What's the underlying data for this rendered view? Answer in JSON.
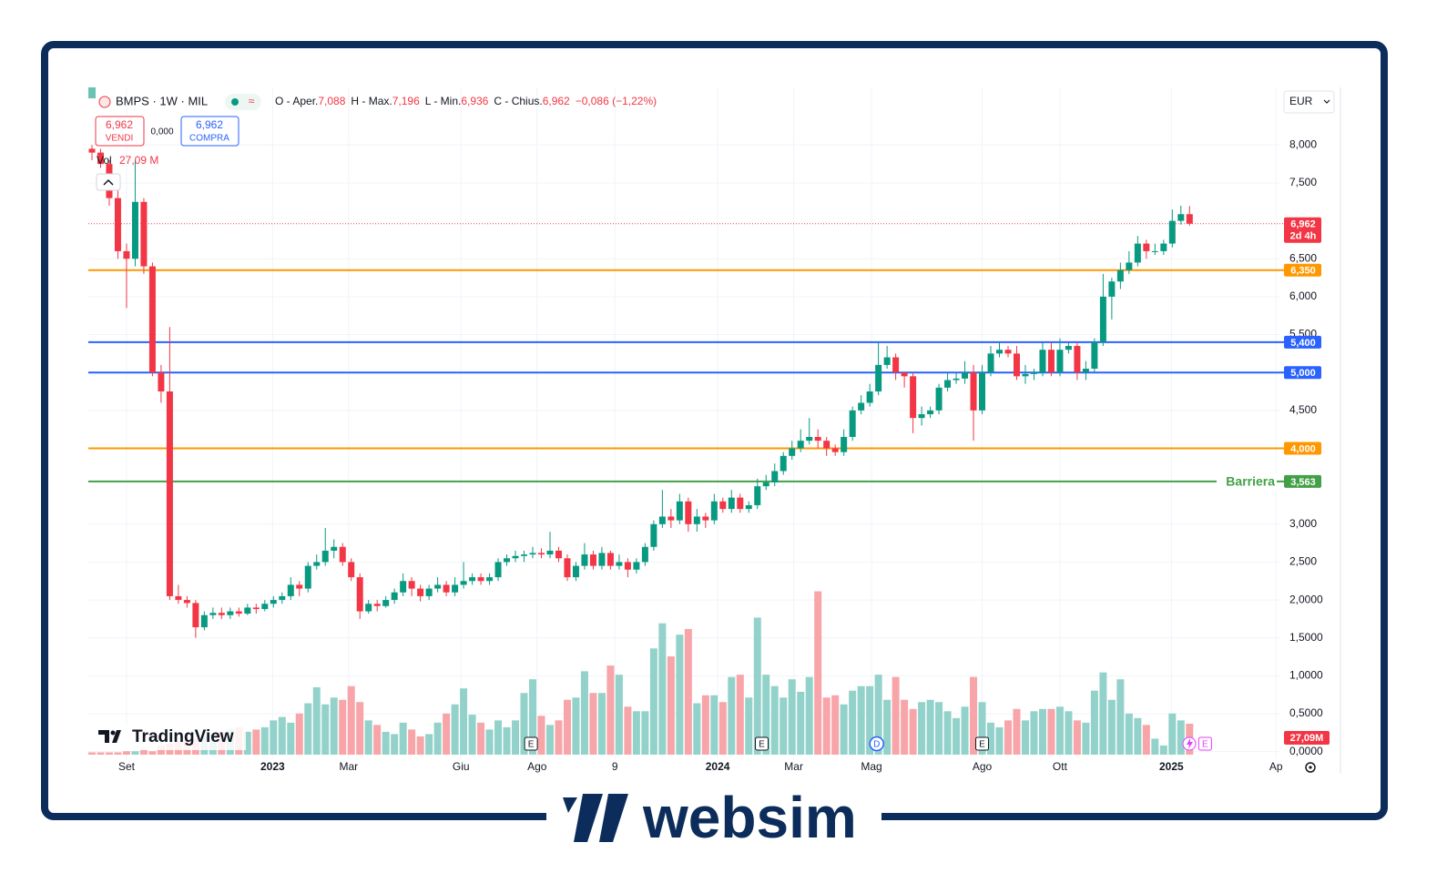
{
  "chart_data": {
    "type": "candlestick",
    "symbol": "BMPS · 1W · MIL",
    "legend_items": [
      {
        "key": "O - Aper.",
        "value": "7,088"
      },
      {
        "key": "H - Max.",
        "value": "7,196"
      },
      {
        "key": "L - Min.",
        "value": "6,936"
      },
      {
        "key": "C - Chius.",
        "value": "6,962"
      }
    ],
    "change": "−0,086 (−1,22%)",
    "trade": {
      "sell_price": "6,962",
      "sell": "VENDI",
      "spread": "0,000",
      "buy_price": "6,962",
      "buy": "COMPRA"
    },
    "volume_label": "Vol",
    "volume_value_label": "27,09 M",
    "currency": "EUR",
    "brand": "TradingView",
    "footer_brand": "websim",
    "up_color": "#089981",
    "down_color": "#f23645",
    "volume_up_color": "#92d2ca",
    "volume_down_color": "#f7a5a8",
    "grid": true,
    "xlim": [
      -0.42,
      137.4
    ],
    "ylim": [
      -0.1,
      8.76
    ],
    "yticks": [
      {
        "value": 8,
        "label": "8,000"
      },
      {
        "value": 7.5,
        "label": "7,500"
      },
      {
        "value": 6.5,
        "label": "6,500"
      },
      {
        "value": 6,
        "label": "6,000"
      },
      {
        "value": 5.5,
        "label": "5,500"
      },
      {
        "value": 4.5,
        "label": "4,500"
      },
      {
        "value": 3,
        "label": "3,000"
      },
      {
        "value": 2.5,
        "label": "2,500"
      },
      {
        "value": 2,
        "label": "2,0000"
      },
      {
        "value": 1.5,
        "label": "1,5000"
      },
      {
        "value": 1,
        "label": "1,0000"
      },
      {
        "value": 0.5,
        "label": "0,5000"
      },
      {
        "value": 0,
        "label": "0,0000"
      }
    ],
    "xticks": [
      {
        "value": 4,
        "label": "Set"
      },
      {
        "value": 20.9,
        "label": "2023"
      },
      {
        "value": 29.7,
        "label": "Mar"
      },
      {
        "value": 42.7,
        "label": "Giu"
      },
      {
        "value": 51.5,
        "label": "Ago"
      },
      {
        "value": 60.5,
        "label": "9"
      },
      {
        "value": 72.4,
        "label": "2024"
      },
      {
        "value": 81.2,
        "label": "Mar"
      },
      {
        "value": 90.2,
        "label": "Mag"
      },
      {
        "value": 103,
        "label": "Ago"
      },
      {
        "value": 112,
        "label": "Ott"
      },
      {
        "value": 124.9,
        "label": "2025"
      },
      {
        "value": 137,
        "label": "Ap"
      }
    ],
    "open": [
      7.95,
      7.9,
      7.75,
      7.3,
      6.6,
      6.5,
      7.25,
      6.4,
      5.0,
      4.75,
      2.05,
      2.0,
      1.96,
      1.64,
      1.8,
      1.83,
      1.8,
      1.85,
      1.82,
      1.9,
      1.88,
      1.95,
      2.0,
      2.05,
      2.2,
      2.15,
      2.45,
      2.5,
      2.65,
      2.7,
      2.5,
      2.3,
      1.85,
      1.95,
      1.92,
      2.0,
      2.1,
      2.25,
      2.15,
      2.05,
      2.15,
      2.2,
      2.1,
      2.2,
      2.25,
      2.3,
      2.25,
      2.3,
      2.5,
      2.55,
      2.58,
      2.6,
      2.62,
      2.6,
      2.65,
      2.55,
      2.3,
      2.45,
      2.6,
      2.45,
      2.62,
      2.45,
      2.5,
      2.4,
      2.5,
      2.7,
      3.0,
      3.1,
      3.05,
      3.3,
      3.0,
      3.1,
      3.05,
      3.3,
      3.2,
      3.35,
      3.2,
      3.25,
      3.5,
      3.55,
      3.7,
      3.9,
      4.0,
      4.1,
      4.15,
      4.1,
      4.0,
      3.95,
      4.15,
      4.5,
      4.6,
      4.75,
      5.1,
      5.2,
      5.0,
      4.95,
      4.4,
      4.45,
      4.5,
      4.8,
      4.9,
      4.92,
      5.0,
      4.5,
      5.0,
      5.25,
      5.3,
      5.25,
      4.95,
      4.98,
      5.0,
      5.3,
      5.0,
      5.3,
      5.35,
      5.0,
      5.05,
      5.4,
      6.0,
      6.2,
      6.35,
      6.45,
      6.7,
      6.6,
      6.6,
      6.7,
      7.0,
      7.088
    ],
    "high": [
      8.0,
      7.95,
      7.8,
      7.4,
      6.7,
      7.8,
      7.3,
      6.45,
      5.1,
      5.6,
      2.2,
      2.05,
      2.0,
      1.85,
      1.9,
      1.9,
      1.9,
      1.9,
      1.95,
      1.95,
      2.0,
      2.05,
      2.1,
      2.3,
      2.25,
      2.5,
      2.6,
      2.95,
      2.8,
      2.75,
      2.55,
      2.35,
      2.0,
      2.0,
      2.05,
      2.15,
      2.35,
      2.3,
      2.2,
      2.2,
      2.3,
      2.25,
      2.3,
      2.5,
      2.35,
      2.35,
      2.35,
      2.55,
      2.6,
      2.65,
      2.65,
      2.7,
      2.68,
      2.9,
      2.7,
      2.6,
      2.5,
      2.75,
      2.65,
      2.7,
      2.65,
      2.6,
      2.55,
      2.55,
      2.75,
      3.05,
      3.45,
      3.2,
      3.4,
      3.35,
      3.2,
      3.15,
      3.4,
      3.35,
      3.45,
      3.4,
      3.3,
      3.6,
      3.65,
      3.8,
      3.95,
      4.1,
      4.25,
      4.4,
      4.25,
      4.15,
      4.05,
      4.25,
      4.55,
      4.7,
      4.85,
      5.4,
      5.35,
      5.25,
      5.0,
      5.0,
      4.55,
      4.55,
      4.85,
      5.0,
      5.0,
      5.15,
      5.1,
      5.1,
      5.35,
      5.4,
      5.35,
      5.35,
      5.1,
      5.05,
      5.4,
      5.4,
      5.45,
      5.4,
      5.4,
      5.15,
      5.45,
      6.3,
      6.25,
      6.45,
      6.6,
      6.8,
      6.75,
      6.7,
      6.75,
      7.15,
      7.2,
      7.196
    ],
    "low": [
      7.8,
      7.7,
      7.2,
      6.5,
      5.85,
      6.4,
      6.3,
      4.95,
      4.6,
      2.0,
      1.95,
      1.9,
      1.5,
      1.6,
      1.75,
      1.75,
      1.75,
      1.78,
      1.8,
      1.82,
      1.85,
      1.9,
      1.95,
      2.0,
      2.05,
      2.1,
      2.4,
      2.45,
      2.55,
      2.45,
      2.25,
      1.75,
      1.82,
      1.85,
      1.9,
      1.95,
      2.05,
      2.05,
      1.98,
      2.0,
      2.1,
      2.05,
      2.05,
      2.15,
      2.2,
      2.2,
      2.2,
      2.25,
      2.45,
      2.5,
      2.5,
      2.55,
      2.55,
      2.55,
      2.5,
      2.25,
      2.25,
      2.4,
      2.4,
      2.4,
      2.4,
      2.4,
      2.3,
      2.35,
      2.45,
      2.65,
      2.95,
      2.95,
      3.0,
      2.9,
      2.9,
      2.95,
      3.0,
      3.15,
      3.15,
      3.15,
      3.15,
      3.2,
      3.45,
      3.5,
      3.65,
      3.85,
      3.95,
      4.05,
      4.0,
      3.9,
      3.9,
      3.9,
      4.1,
      4.45,
      4.55,
      4.7,
      5.05,
      4.9,
      4.8,
      4.2,
      4.3,
      4.4,
      4.45,
      4.75,
      4.85,
      4.85,
      4.1,
      4.45,
      4.95,
      5.2,
      5.2,
      4.9,
      4.85,
      4.9,
      4.95,
      4.95,
      4.95,
      5.25,
      4.9,
      4.9,
      5.0,
      5.35,
      5.7,
      6.1,
      6.3,
      6.4,
      6.5,
      6.55,
      6.55,
      6.65,
      6.95,
      6.936
    ],
    "close": [
      7.9,
      7.75,
      7.3,
      6.6,
      6.5,
      7.25,
      6.4,
      5.0,
      4.75,
      2.05,
      2.0,
      1.96,
      1.64,
      1.8,
      1.83,
      1.8,
      1.85,
      1.82,
      1.9,
      1.88,
      1.95,
      2.0,
      2.05,
      2.2,
      2.15,
      2.45,
      2.5,
      2.65,
      2.7,
      2.5,
      2.3,
      1.85,
      1.95,
      1.92,
      2.0,
      2.1,
      2.25,
      2.15,
      2.05,
      2.15,
      2.2,
      2.1,
      2.2,
      2.25,
      2.3,
      2.25,
      2.3,
      2.5,
      2.55,
      2.58,
      2.6,
      2.62,
      2.6,
      2.65,
      2.55,
      2.3,
      2.45,
      2.6,
      2.45,
      2.62,
      2.45,
      2.5,
      2.4,
      2.5,
      2.7,
      3.0,
      3.1,
      3.05,
      3.3,
      3.0,
      3.1,
      3.05,
      3.3,
      3.2,
      3.35,
      3.2,
      3.25,
      3.5,
      3.55,
      3.7,
      3.9,
      4.0,
      4.1,
      4.15,
      4.1,
      4.0,
      3.95,
      4.15,
      4.5,
      4.6,
      4.75,
      5.1,
      5.2,
      5.0,
      4.95,
      4.4,
      4.45,
      4.5,
      4.8,
      4.9,
      4.92,
      5.0,
      4.5,
      5.0,
      5.25,
      5.3,
      5.25,
      4.95,
      4.98,
      5.0,
      5.3,
      5.0,
      5.3,
      5.35,
      5.0,
      5.05,
      5.4,
      6.0,
      6.2,
      6.35,
      6.45,
      6.7,
      6.6,
      6.6,
      6.7,
      7.0,
      7.088,
      6.962
    ],
    "volume": [
      2,
      2,
      2,
      2,
      3,
      3,
      4,
      3,
      8,
      10,
      12,
      12,
      14,
      16,
      18,
      20,
      22,
      24,
      20,
      22,
      24,
      30,
      33,
      28,
      36,
      45,
      59,
      44,
      50,
      48,
      60,
      46,
      30,
      26,
      20,
      18,
      28,
      22,
      16,
      18,
      28,
      36,
      44,
      58,
      35,
      28,
      22,
      30,
      24,
      30,
      54,
      66,
      34,
      26,
      30,
      48,
      50,
      73,
      54,
      54,
      78,
      70,
      42,
      38,
      38,
      93,
      115,
      86,
      105,
      110,
      45,
      52,
      52,
      46,
      68,
      70,
      50,
      120,
      70,
      60,
      50,
      66,
      55,
      68,
      143,
      50,
      52,
      44,
      56,
      60,
      60,
      70,
      48,
      68,
      48,
      40,
      46,
      48,
      46,
      38,
      32,
      42,
      68,
      46,
      28,
      24,
      30,
      40,
      30,
      38,
      40,
      40,
      42,
      38,
      30,
      28,
      56,
      72,
      48,
      66,
      36,
      32,
      26,
      14,
      8,
      36,
      30,
      27.09
    ],
    "levels": [
      {
        "value": 6.35,
        "label": "6,350",
        "color": "#ff9800"
      },
      {
        "value": 5.4,
        "label": "5,400",
        "color": "#2962ff"
      },
      {
        "value": 5.0,
        "label": "5,000",
        "color": "#2962ff"
      },
      {
        "value": 4.0,
        "label": "4,000",
        "color": "#ff9800"
      },
      {
        "value": 3.563,
        "label": "3,563",
        "color": "#43a047",
        "name": "Barriera"
      }
    ],
    "last_price": {
      "value": 6.962,
      "label": "6,962",
      "countdown": "2d 4h",
      "color": "#f23645"
    },
    "volume_axis_label": "27,09M",
    "events": [
      {
        "at": 50.8,
        "label": "E",
        "color": "#131722"
      },
      {
        "at": 77.5,
        "label": "E",
        "color": "#131722"
      },
      {
        "at": 90.8,
        "label": "D",
        "color": "#2962ff"
      },
      {
        "at": 103,
        "label": "E",
        "color": "#131722"
      },
      {
        "at": 128.8,
        "label": "E",
        "color": "#e040fb"
      }
    ]
  }
}
